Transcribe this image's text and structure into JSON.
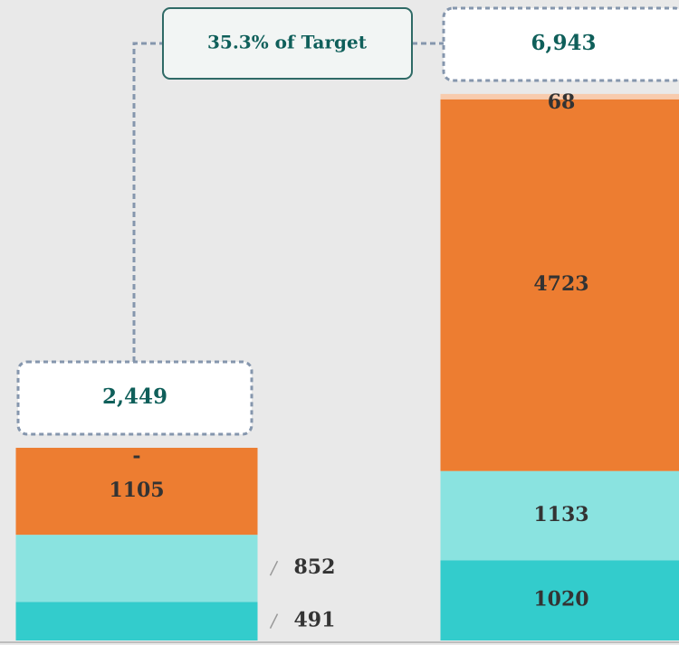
{
  "chart_data": {
    "type": "stacked_bar",
    "categories": [
      null,
      null
    ],
    "series": [
      {
        "color": "#33cccc",
        "values": [
          491,
          1020
        ]
      },
      {
        "color": "#8ae3e0",
        "values": [
          852,
          1133
        ]
      },
      {
        "color": "#ed7d31",
        "values": [
          1105,
          4723
        ]
      },
      {
        "color": "#f8cbad",
        "values": [
          0,
          68
        ],
        "value_labels": [
          "-",
          "68"
        ]
      }
    ],
    "totals": [
      2449,
      6943
    ],
    "total_labels": [
      "2,449",
      "6,943"
    ],
    "annotation": "35.3% of Target",
    "ylim": [
      0,
      8000
    ]
  }
}
